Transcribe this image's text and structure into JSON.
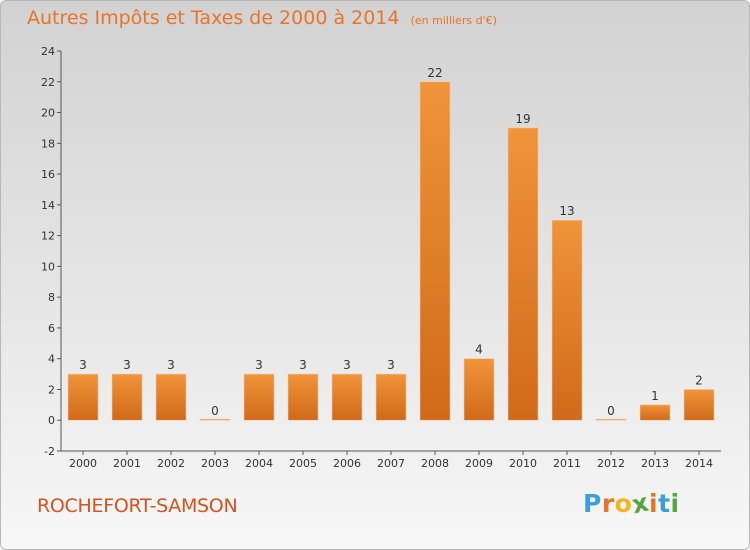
{
  "chart_data": {
    "type": "bar",
    "title": "Autres Impôts et Taxes de 2000 à 2014",
    "subtitle": "(en milliers d'€)",
    "categories": [
      "2000",
      "2001",
      "2002",
      "2003",
      "2004",
      "2005",
      "2006",
      "2007",
      "2008",
      "2009",
      "2010",
      "2011",
      "2012",
      "2013",
      "2014"
    ],
    "values": [
      3,
      3,
      3,
      0,
      3,
      3,
      3,
      3,
      22,
      4,
      19,
      13,
      0,
      1,
      2
    ],
    "data_labels": [
      "3",
      "3",
      "3",
      "0",
      "3",
      "3",
      "3",
      "3",
      "22",
      "4",
      "19",
      "13",
      "0",
      "1",
      "2"
    ],
    "ylim": [
      -2,
      24
    ],
    "yticks": [
      -2,
      0,
      2,
      4,
      6,
      8,
      10,
      12,
      14,
      16,
      18,
      20,
      22,
      24
    ],
    "grid": false,
    "bar_color": "#f0943a",
    "bar_color_dark": "#d06a1a"
  },
  "footer": {
    "place": "ROCHEFORT-SAMSON",
    "logo_letters": [
      "P",
      "r",
      "o",
      "x",
      "i",
      "t",
      "i"
    ],
    "logo_colors": [
      "#3aa0dc",
      "#e8742a",
      "#f2b720",
      "#55a840",
      "#e8742a",
      "#3aa0dc",
      "#55a840"
    ]
  }
}
